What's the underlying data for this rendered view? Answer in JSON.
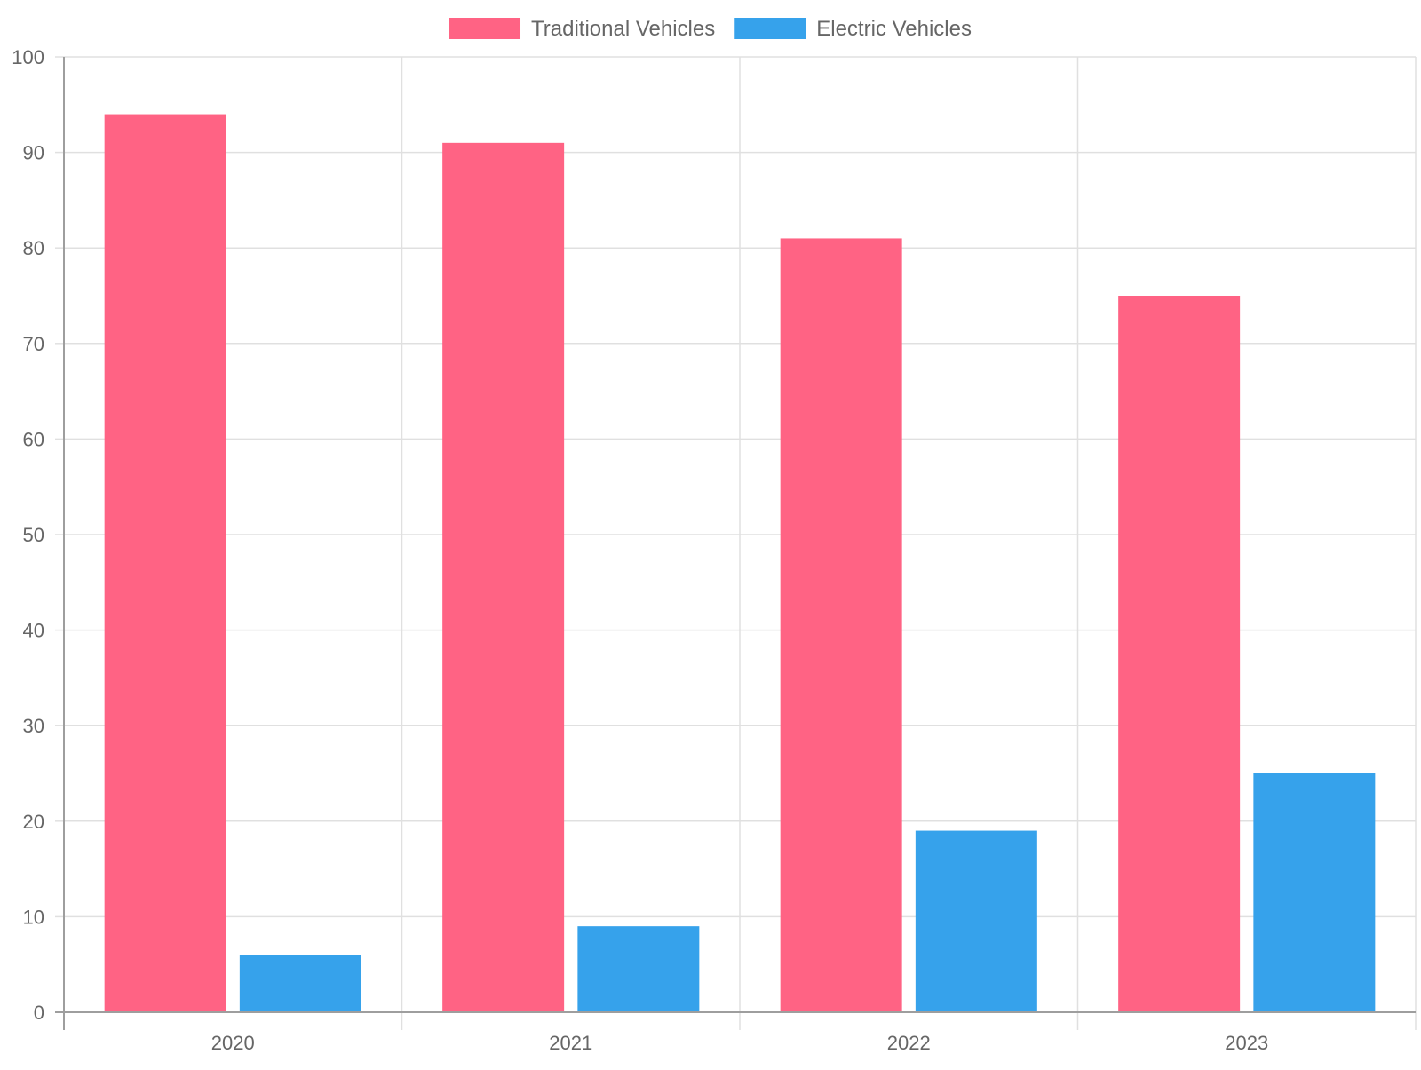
{
  "chart_data": {
    "type": "bar",
    "title": "",
    "xlabel": "",
    "ylabel": "",
    "categories": [
      "2020",
      "2021",
      "2022",
      "2023"
    ],
    "series": [
      {
        "name": "Traditional Vehicles",
        "values": [
          94,
          91,
          81,
          75
        ],
        "color": "#ff6384"
      },
      {
        "name": "Electric Vehicles",
        "values": [
          6,
          9,
          19,
          25
        ],
        "color": "#36a2eb"
      }
    ],
    "ylim": [
      0,
      100
    ],
    "yticks": [
      "0",
      "10",
      "20",
      "30",
      "40",
      "50",
      "60",
      "70",
      "80",
      "90",
      "100"
    ],
    "grid": true,
    "legend": "top-center"
  }
}
